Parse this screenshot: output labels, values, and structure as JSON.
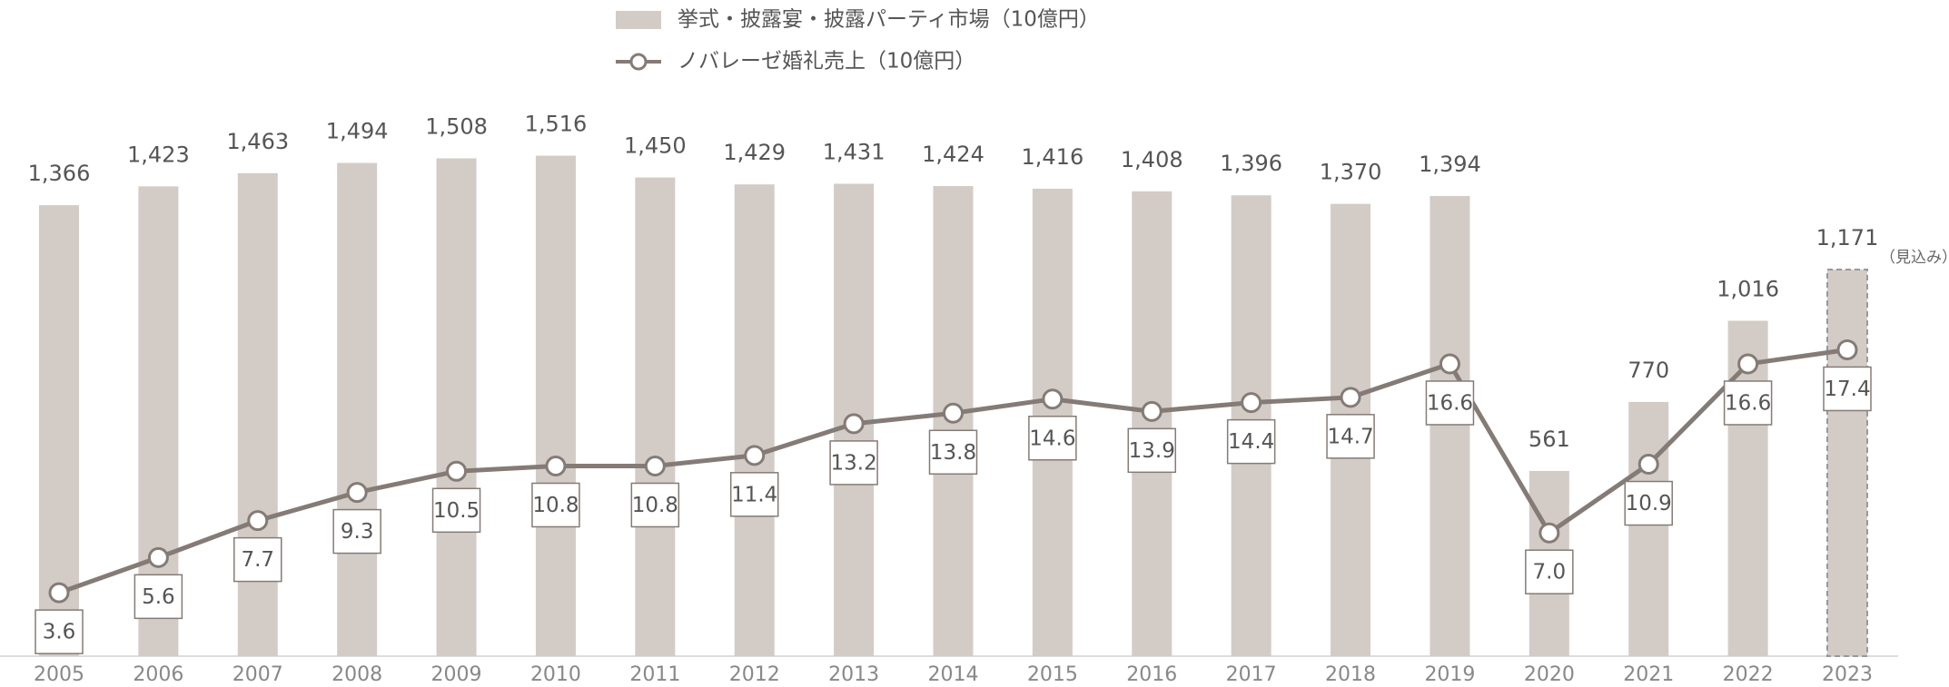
{
  "chart_data": {
    "type": "bar-line",
    "categories": [
      "2005",
      "2006",
      "2007",
      "2008",
      "2009",
      "2010",
      "2011",
      "2012",
      "2013",
      "2014",
      "2015",
      "2016",
      "2017",
      "2018",
      "2019",
      "2020",
      "2021",
      "2022",
      "2023"
    ],
    "series": [
      {
        "name": "挙式・披露宴・披露パーティ市場（10億円）",
        "type": "bar",
        "color": "#d3cbc6",
        "values": [
          1366,
          1423,
          1463,
          1494,
          1508,
          1516,
          1450,
          1429,
          1431,
          1424,
          1416,
          1408,
          1396,
          1370,
          1394,
          561,
          770,
          1016,
          1171
        ],
        "value_labels": [
          "1,366",
          "1,423",
          "1,463",
          "1,494",
          "1,508",
          "1,516",
          "1,450",
          "1,429",
          "1,431",
          "1,424",
          "1,416",
          "1,408",
          "1,396",
          "1,370",
          "1,394",
          "561",
          "770",
          "1,016",
          "1,171"
        ]
      },
      {
        "name": "ノバレーゼ婚礼売上（10億円）",
        "type": "line",
        "axis": "y2",
        "color": "#857b76",
        "values": [
          3.6,
          5.6,
          7.7,
          9.3,
          10.5,
          10.8,
          10.8,
          11.4,
          13.2,
          13.8,
          14.6,
          13.9,
          14.4,
          14.7,
          16.6,
          7.0,
          10.9,
          16.6,
          17.4
        ],
        "value_labels": [
          "3.6",
          "5.6",
          "7.7",
          "9.3",
          "10.5",
          "10.8",
          "10.8",
          "11.4",
          "13.2",
          "13.8",
          "14.6",
          "13.9",
          "14.4",
          "14.7",
          "16.6",
          "7.0",
          "10.9",
          "16.6",
          "17.4"
        ]
      }
    ],
    "annotations": [
      {
        "text": "（見込み）",
        "x": "2023"
      }
    ],
    "ylim": [
      0,
      1600
    ],
    "y2lim": [
      0,
      30
    ],
    "legend": "top"
  }
}
